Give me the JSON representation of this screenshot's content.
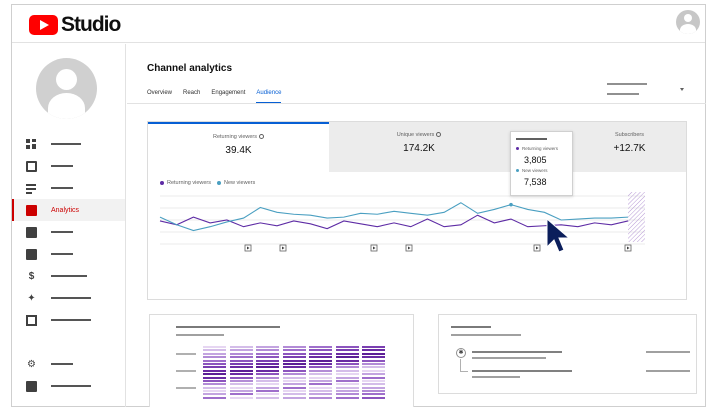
{
  "app": {
    "title": "Studio"
  },
  "sidebar": {
    "items": [
      {
        "id": "dashboard",
        "icon": "dashboard-icon",
        "label": ""
      },
      {
        "id": "content",
        "icon": "video-content-icon",
        "label": ""
      },
      {
        "id": "playlists",
        "icon": "playlist-icon",
        "label": ""
      },
      {
        "id": "analytics",
        "icon": "analytics-icon",
        "label": "Analytics",
        "active": true
      },
      {
        "id": "comments",
        "icon": "comments-icon",
        "label": ""
      },
      {
        "id": "subtitles",
        "icon": "subtitles-icon",
        "label": ""
      },
      {
        "id": "earn",
        "icon": "dollar-icon",
        "label": ""
      },
      {
        "id": "customization",
        "icon": "magic-wand-icon",
        "label": ""
      },
      {
        "id": "audio-library",
        "icon": "audio-library-icon",
        "label": ""
      }
    ],
    "footer": [
      {
        "id": "settings",
        "icon": "gear-icon",
        "label": ""
      },
      {
        "id": "feedback",
        "icon": "feedback-icon",
        "label": ""
      }
    ]
  },
  "page": {
    "title": "Channel analytics",
    "tabs": [
      "Overview",
      "Reach",
      "Engagement",
      "Audience"
    ],
    "active_tab": "Audience"
  },
  "metrics": [
    {
      "label": "Returning viewers",
      "value": "39.4K",
      "active": true,
      "info": true
    },
    {
      "label": "Unique viewers",
      "value": "174.2K",
      "active": false,
      "info": true
    },
    {
      "label": "Subscribers",
      "value": "+12.7K",
      "active": false,
      "info": false
    }
  ],
  "legend": {
    "returning": "Returning viewers",
    "new": "New viewers"
  },
  "tooltip": {
    "returning_label": "Returning viewers",
    "returning_value": "3,805",
    "new_label": "New viewers",
    "new_value": "7,538"
  },
  "colors": {
    "returning": "#5e2ca5",
    "new": "#4a9fc1",
    "accent": "#065fd4",
    "brand": "#ff0000"
  },
  "chart_data": {
    "type": "line",
    "series": [
      {
        "name": "Returning viewers",
        "values": [
          24,
          20,
          28,
          22,
          25,
          18,
          22,
          19,
          24,
          21,
          16,
          24,
          21,
          18,
          22,
          18,
          26,
          18,
          20,
          30,
          22,
          26,
          18,
          19,
          20,
          18,
          22,
          20,
          24
        ]
      },
      {
        "name": "New viewers",
        "values": [
          28,
          20,
          14,
          18,
          23,
          27,
          38,
          33,
          31,
          30,
          27,
          28,
          32,
          31,
          34,
          32,
          30,
          33,
          43,
          32,
          36,
          41,
          36,
          33,
          25,
          26,
          27,
          27,
          28
        ]
      }
    ],
    "grid": true
  }
}
